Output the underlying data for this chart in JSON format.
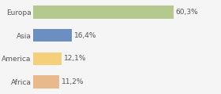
{
  "categories": [
    "Africa",
    "America",
    "Asia",
    "Europa"
  ],
  "values": [
    11.2,
    12.1,
    16.4,
    60.3
  ],
  "bar_colors": [
    "#e8b98a",
    "#f5d07a",
    "#6a8fc0",
    "#b5c98e"
  ],
  "labels": [
    "11,2%",
    "12,1%",
    "16,4%",
    "60,3%"
  ],
  "background_color": "#f5f5f5",
  "text_color": "#555555",
  "label_fontsize": 6.5,
  "tick_fontsize": 6.5,
  "xlim": [
    0,
    80
  ],
  "grid_color": "#dddddd",
  "bar_height": 0.55
}
